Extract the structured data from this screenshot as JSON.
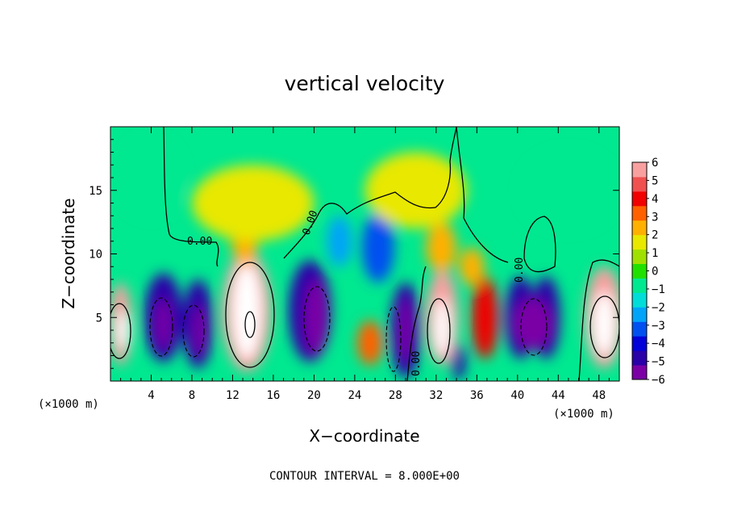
{
  "chart_data": {
    "type": "heatmap",
    "title": "vertical velocity",
    "xlabel": "X−coordinate",
    "ylabel": "Z−coordinate",
    "x_unit": "(×1000 m)",
    "x_unit_right": "(×1000 m)",
    "xlim": [
      0,
      50
    ],
    "ylim": [
      0,
      20
    ],
    "x_ticks": [
      4,
      8,
      12,
      16,
      20,
      24,
      28,
      32,
      36,
      40,
      44,
      48
    ],
    "x_tick_labels": [
      "4",
      "8",
      "12",
      "16",
      "20",
      "24",
      "28",
      "32",
      "36",
      "40",
      "44",
      "48"
    ],
    "y_ticks": [
      5,
      10,
      15
    ],
    "y_tick_labels": [
      "5",
      "10",
      "15"
    ],
    "colorbar": {
      "min": -6,
      "max": 6,
      "ticks": [
        6,
        5,
        4,
        3,
        2,
        1,
        0,
        -1,
        -2,
        -3,
        -4,
        -5,
        -6
      ],
      "tick_labels": [
        "6",
        "5",
        "4",
        "3",
        "2",
        "1",
        "0",
        "−1",
        "−2",
        "−3",
        "−4",
        "−5",
        "−6"
      ],
      "colors": [
        "#7a00a6",
        "#2a00a8",
        "#0000d8",
        "#0050f0",
        "#00a4f8",
        "#00dcd8",
        "#00e890",
        "#20e000",
        "#a0e000",
        "#e8e800",
        "#ffb000",
        "#ff6000",
        "#f00000",
        "#f05050",
        "#f8a0a0"
      ]
    },
    "contour_interval": "CONTOUR INTERVAL = 8.000E+00",
    "contour_labels": [
      "0.00",
      "0.00",
      "0.00",
      "0.00"
    ],
    "cells": [
      {
        "x": 1,
        "z": 4.5,
        "w": 2.2,
        "h": 6.5,
        "v": 5.5
      },
      {
        "x": 1.2,
        "z": 4,
        "w": 1.2,
        "h": 3,
        "v": 12
      },
      {
        "x": 5.2,
        "z": 5,
        "w": 3.8,
        "h": 7,
        "v": -5
      },
      {
        "x": 5.2,
        "z": 4.5,
        "w": 1.4,
        "h": 4,
        "v": -12
      },
      {
        "x": 8.6,
        "z": 4.5,
        "w": 3,
        "h": 7,
        "v": -5
      },
      {
        "x": 8.8,
        "z": 4,
        "w": 1.2,
        "h": 4,
        "v": -12
      },
      {
        "x": 13.4,
        "z": 5.5,
        "w": 4.8,
        "h": 9.5,
        "v": 6
      },
      {
        "x": 13.4,
        "z": 5.5,
        "w": 2.8,
        "h": 7.5,
        "v": 14
      },
      {
        "x": 13.2,
        "z": 11,
        "w": 2.6,
        "h": 4,
        "v": 2.5
      },
      {
        "x": 19.6,
        "z": 5.5,
        "w": 4.2,
        "h": 8,
        "v": -5
      },
      {
        "x": 20.2,
        "z": 5,
        "w": 2.2,
        "h": 6,
        "v": -12
      },
      {
        "x": 22.5,
        "z": 11,
        "w": 2.5,
        "h": 4,
        "v": -2.5
      },
      {
        "x": 26.3,
        "z": 10.5,
        "w": 3.2,
        "h": 5.5,
        "v": -3.5
      },
      {
        "x": 25.5,
        "z": 3,
        "w": 2.5,
        "h": 3.5,
        "v": 3
      },
      {
        "x": 29,
        "z": 4,
        "w": 3,
        "h": 7.5,
        "v": -5
      },
      {
        "x": 29,
        "z": 4,
        "w": 1.3,
        "h": 5,
        "v": -12
      },
      {
        "x": 32.6,
        "z": 5,
        "w": 3.2,
        "h": 7.5,
        "v": 6
      },
      {
        "x": 32.6,
        "z": 4.2,
        "w": 1.6,
        "h": 4.5,
        "v": 12
      },
      {
        "x": 32.5,
        "z": 10.5,
        "w": 3,
        "h": 4,
        "v": 2
      },
      {
        "x": 34.2,
        "z": 1.5,
        "w": 1.3,
        "h": 2.8,
        "v": -5
      },
      {
        "x": 36.8,
        "z": 5,
        "w": 2.6,
        "h": 6.5,
        "v": 4
      },
      {
        "x": 35.5,
        "z": 9,
        "w": 2.5,
        "h": 3,
        "v": 2.5
      },
      {
        "x": 40.3,
        "z": 5,
        "w": 3,
        "h": 6.5,
        "v": -5
      },
      {
        "x": 42.8,
        "z": 5,
        "w": 2.8,
        "h": 6.5,
        "v": -5
      },
      {
        "x": 41.5,
        "z": 4.5,
        "w": 4,
        "h": 4,
        "v": -12
      },
      {
        "x": 48.5,
        "z": 5,
        "w": 3.8,
        "h": 8,
        "v": 6
      },
      {
        "x": 48.5,
        "z": 4.5,
        "w": 2.2,
        "h": 5,
        "v": 13
      },
      {
        "x": 14,
        "z": 14,
        "w": 12,
        "h": 6,
        "v": 1.3
      },
      {
        "x": 30,
        "z": 15,
        "w": 10,
        "h": 6,
        "v": 1.2
      },
      {
        "x": 4,
        "z": 16,
        "w": 6,
        "h": 6,
        "v": -0.6
      },
      {
        "x": 45,
        "z": 15,
        "w": 9,
        "h": 6,
        "v": -0.5
      }
    ]
  }
}
